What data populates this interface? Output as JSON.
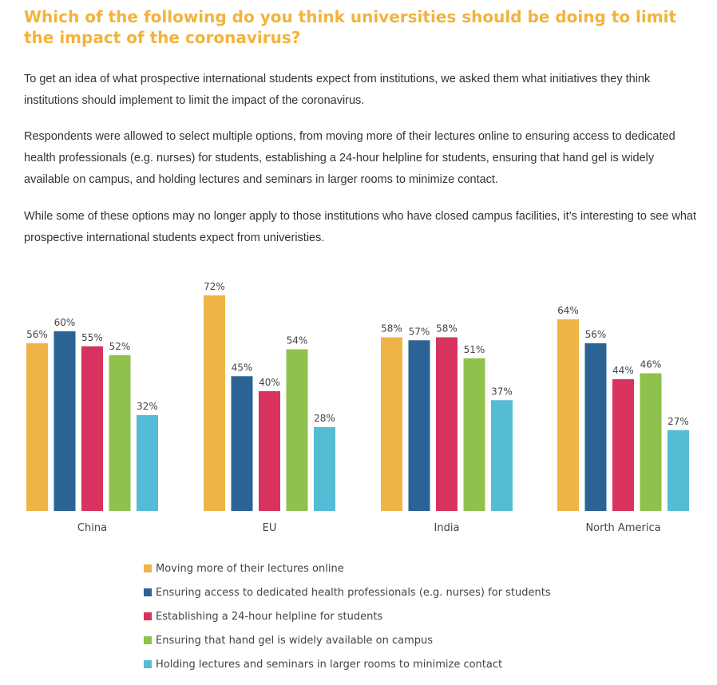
{
  "title": "Which of the following do you think universities should be doing to limit the impact of the coronavirus?",
  "paragraphs": [
    "To get an idea of what prospective international students expect from institutions, we asked them what initiatives they think institutions should implement to limit the impact of the coronavirus.",
    "Respondents were allowed to select multiple options, from moving more of their lectures online to ensuring access to dedicated health professionals (e.g. nurses) for students, establishing a 24-hour helpline for students, ensuring that hand gel is widely available on campus, and holding lectures and seminars in larger rooms to minimize contact.",
    "While some of these options may no longer apply to those institutions who have closed campus facilities, it’s interesting to see what prospective international students expect from univeristies."
  ],
  "chart_data": {
    "type": "bar",
    "categories": [
      "China",
      "EU",
      "India",
      "North America"
    ],
    "series": [
      {
        "name": "Moving more of their lectures online",
        "color": "#f0b446",
        "values": [
          56,
          72,
          58,
          64
        ]
      },
      {
        "name": "Ensuring access to dedicated health professionals (e.g. nurses) for students",
        "color": "#2b6394",
        "values": [
          60,
          45,
          57,
          56
        ]
      },
      {
        "name": "Establishing a 24-hour helpline for students",
        "color": "#d8325f",
        "values": [
          55,
          40,
          58,
          44
        ]
      },
      {
        "name": "Ensuring that hand gel is widely available on campus",
        "color": "#8fc14c",
        "values": [
          52,
          54,
          51,
          46
        ]
      },
      {
        "name": "Holding lectures and seminars in larger rooms to minimize contact",
        "color": "#55bcd6",
        "values": [
          32,
          28,
          37,
          27
        ]
      }
    ],
    "value_suffix": "%",
    "ylim": [
      0,
      100
    ],
    "grid": false,
    "legend_position": "bottom"
  }
}
